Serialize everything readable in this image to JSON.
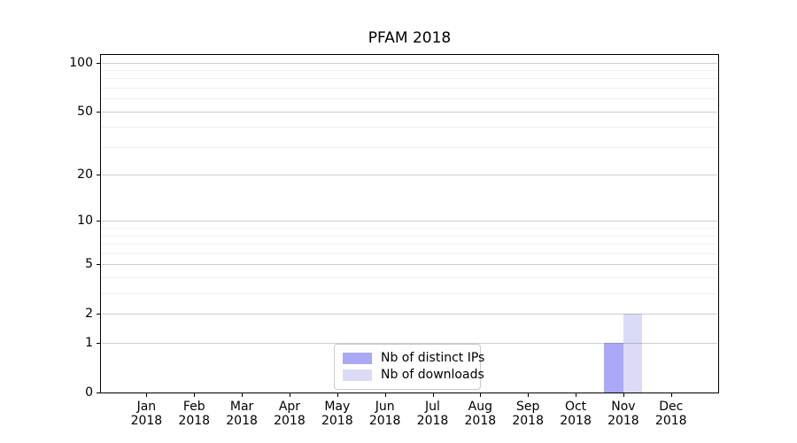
{
  "chart_data": {
    "type": "bar",
    "title": "PFAM 2018",
    "categories": [
      "Jan",
      "Feb",
      "Mar",
      "Apr",
      "May",
      "Jun",
      "Jul",
      "Aug",
      "Sep",
      "Oct",
      "Nov",
      "Dec"
    ],
    "category_year": "2018",
    "series": [
      {
        "name": "Nb of distinct IPs",
        "color": "#a9a9f6",
        "values": [
          0,
          0,
          0,
          0,
          0,
          0,
          0,
          0,
          0,
          0,
          1,
          0
        ]
      },
      {
        "name": "Nb of downloads",
        "color": "#dbdbf8",
        "values": [
          0,
          0,
          0,
          0,
          0,
          0,
          0,
          0,
          0,
          0,
          2,
          0
        ]
      }
    ],
    "xlabel": "",
    "ylabel": "",
    "y_axis": {
      "scale": "log1p",
      "major_ticks": [
        0,
        1,
        2,
        5,
        10,
        20,
        50,
        100
      ],
      "minor_ticks": [
        3,
        4,
        6,
        7,
        8,
        9,
        30,
        40,
        60,
        70,
        80,
        90
      ],
      "ylim_top_value": 115
    },
    "grid": "horizontal-only",
    "legend_position": "lower-center-inside",
    "colors": {
      "axis_frame": "#000000",
      "major_grid": "rgba(100,100,100,0.32)",
      "minor_grid": "rgba(100,100,100,0.10)",
      "legend_border": "#c9c9c9",
      "background": "#ffffff",
      "text": "#000000"
    }
  }
}
